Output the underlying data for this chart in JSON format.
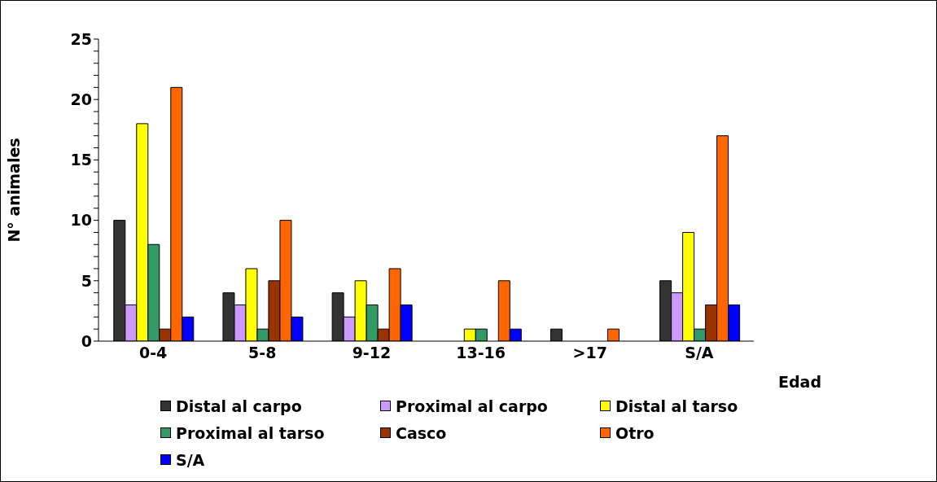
{
  "chart_data": {
    "type": "bar",
    "xlabel": "Edad",
    "ylabel": "N° animales",
    "categories": [
      "0-4",
      "5-8",
      "9-12",
      "13-16",
      ">17",
      "S/A"
    ],
    "series": [
      {
        "name": "Distal al carpo",
        "color": "#333333",
        "values": [
          10,
          4,
          4,
          0,
          1,
          5
        ]
      },
      {
        "name": "Proximal al carpo",
        "color": "#cc99ff",
        "values": [
          3,
          3,
          2,
          0,
          0,
          4
        ]
      },
      {
        "name": "Distal al tarso",
        "color": "#ffff00",
        "values": [
          18,
          6,
          5,
          1,
          0,
          9
        ]
      },
      {
        "name": "Proximal al tarso",
        "color": "#339966",
        "values": [
          8,
          1,
          3,
          1,
          0,
          1
        ]
      },
      {
        "name": "Casco",
        "color": "#993300",
        "values": [
          1,
          5,
          1,
          0,
          0,
          3
        ]
      },
      {
        "name": "Otro",
        "color": "#ff6600",
        "values": [
          21,
          10,
          6,
          5,
          1,
          17
        ]
      },
      {
        "name": "S/A",
        "color": "#0000ff",
        "values": [
          2,
          2,
          3,
          1,
          0,
          3
        ]
      }
    ],
    "ylim": [
      0,
      25
    ],
    "yticks": [
      0,
      {
        "value": 1,
        "label": null
      },
      {
        "value": 2,
        "label": null
      },
      {
        "value": 3,
        "label": null
      },
      {
        "value": 4,
        "label": null
      },
      5,
      {
        "value": 6,
        "label": null
      },
      {
        "value": 7,
        "label": null
      },
      {
        "value": 8,
        "label": null
      },
      {
        "value": 9,
        "label": null
      },
      10,
      {
        "value": 11,
        "label": null
      },
      {
        "value": 12,
        "label": null
      },
      {
        "value": 13,
        "label": null
      },
      {
        "value": 14,
        "label": null
      },
      15,
      {
        "value": 16,
        "label": null
      },
      {
        "value": 17,
        "label": null
      },
      {
        "value": 18,
        "label": null
      },
      {
        "value": 19,
        "label": null
      },
      20,
      {
        "value": 21,
        "label": null
      },
      {
        "value": 22,
        "label": null
      },
      {
        "value": 23,
        "label": null
      },
      {
        "value": 24,
        "label": null
      },
      25
    ],
    "grid": false,
    "legend": "bottom"
  }
}
